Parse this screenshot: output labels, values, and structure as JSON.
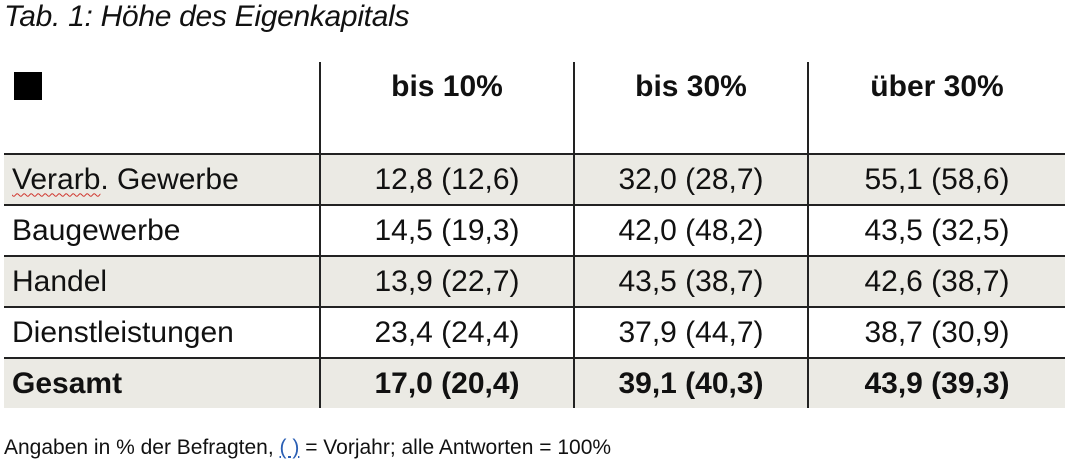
{
  "caption": "Tab. 1: Höhe des Eigenkapitals",
  "table": {
    "corner_icon": "black-square",
    "headers": [
      "bis 10%",
      "bis 30%",
      "über 30%"
    ],
    "rows": [
      {
        "label_a": "Verarb",
        "label_b": ". Gewerbe",
        "values": [
          "12,8 (12,6)",
          "32,0 (28,7)",
          "55,1 (58,6)"
        ]
      },
      {
        "label": "Baugewerbe",
        "values": [
          "14,5 (19,3)",
          "42,0 (48,2)",
          "43,5 (32,5)"
        ]
      },
      {
        "label": "Handel",
        "values": [
          "13,9 (22,7)",
          "43,5 (38,7)",
          "42,6 (38,7)"
        ]
      },
      {
        "label": "Dienstleistungen",
        "values": [
          "23,4 (24,4)",
          "37,9 (44,7)",
          "38,7 (30,9)"
        ]
      },
      {
        "label": "Gesamt",
        "values": [
          "17,0 (20,4)",
          "39,1 (40,3)",
          "43,9 (39,3)"
        ]
      }
    ]
  },
  "note": {
    "before": "Angaben in % der Befragten, ",
    "paren": "( )",
    "after": " = Vorjahr; alle Antworten = 100%"
  },
  "colors": {
    "row_shade": "#ebeae4",
    "grid": "#222222",
    "spellcheck": "#d0342c",
    "link": "#2b5fb4"
  }
}
